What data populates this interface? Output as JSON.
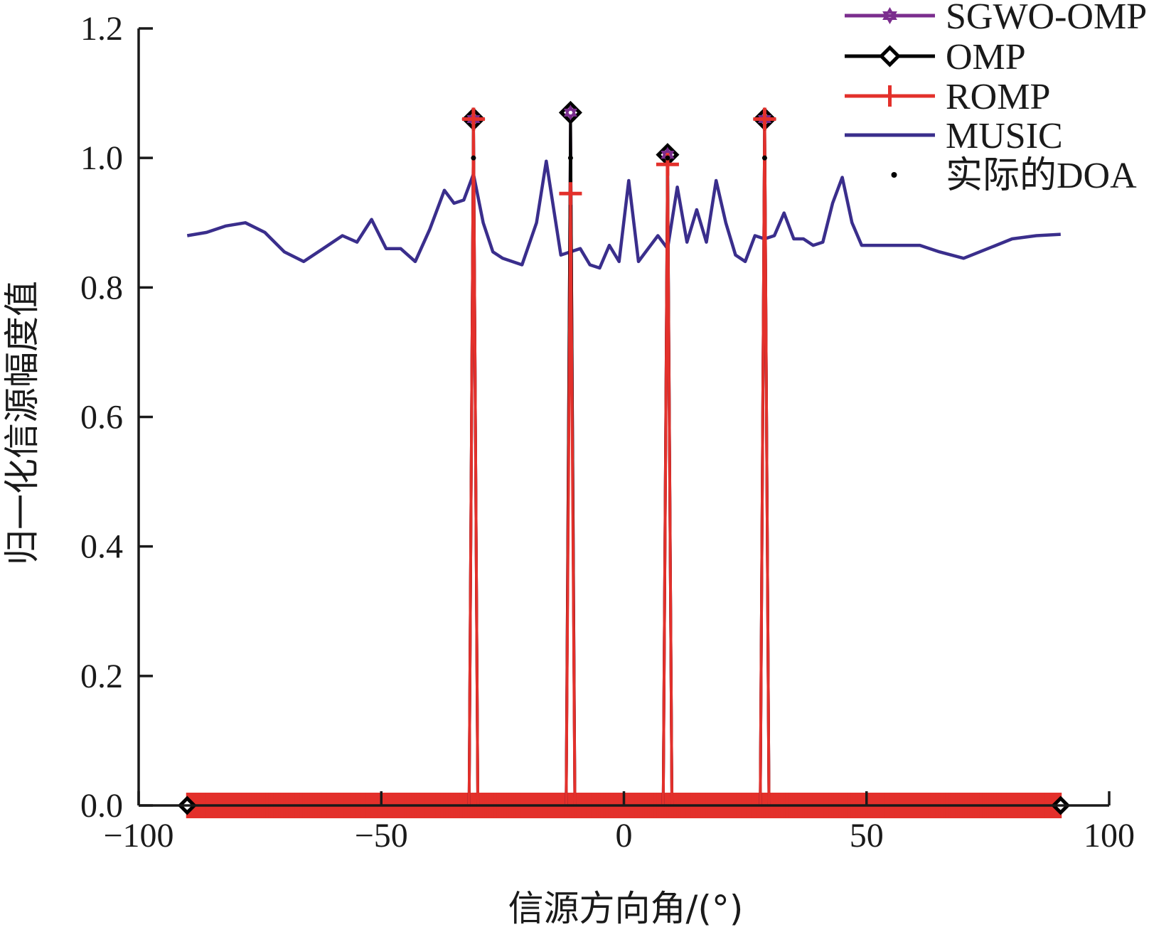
{
  "chart_data": {
    "type": "line",
    "title": "",
    "xlabel": "信源方向角/(°)",
    "ylabel": "归一化信源幅度值",
    "xlim": [
      -100,
      100
    ],
    "ylim": [
      0,
      1.2
    ],
    "x_ticks": [
      {
        "value": -100,
        "label": "−100"
      },
      {
        "value": -50,
        "label": "−50"
      },
      {
        "value": 0,
        "label": "0"
      },
      {
        "value": 50,
        "label": "50"
      },
      {
        "value": 100,
        "label": "100"
      }
    ],
    "y_ticks": [
      {
        "value": 0,
        "label": "0.0"
      },
      {
        "value": 0.2,
        "label": "0.2"
      },
      {
        "value": 0.4,
        "label": "0.4"
      },
      {
        "value": 0.6,
        "label": "0.6"
      },
      {
        "value": 0.8,
        "label": "0.8"
      },
      {
        "value": 1.0,
        "label": "1.0"
      },
      {
        "value": 1.2,
        "label": "1.2"
      }
    ],
    "grid": false,
    "legend_position": "top-right",
    "x_range": [
      -90,
      90
    ],
    "series": [
      {
        "name": "SGWO-OMP",
        "color": "#7b2d8e",
        "marker": "hexagram",
        "baseline": 0,
        "peaks": [
          {
            "x": -31,
            "y": 1.06
          },
          {
            "x": -11,
            "y": 1.07
          },
          {
            "x": 9,
            "y": 1.005
          },
          {
            "x": 29,
            "y": 1.06
          }
        ]
      },
      {
        "name": "OMP",
        "color": "#000000",
        "marker": "diamond",
        "baseline": 0,
        "peaks": [
          {
            "x": -31,
            "y": 1.06
          },
          {
            "x": -11,
            "y": 1.07
          },
          {
            "x": 9,
            "y": 1.005
          },
          {
            "x": 29,
            "y": 1.06
          }
        ]
      },
      {
        "name": "ROMP",
        "color": "#e3302b",
        "marker": "plus",
        "baseline": 0,
        "peaks": [
          {
            "x": -31,
            "y": 1.06
          },
          {
            "x": -11,
            "y": 0.945
          },
          {
            "x": 9,
            "y": 0.99
          },
          {
            "x": 29,
            "y": 1.06
          }
        ]
      },
      {
        "name": "MUSIC",
        "color": "#3a2e8c",
        "marker": "none",
        "x": [
          -90,
          -86,
          -82,
          -78,
          -74,
          -70,
          -66,
          -62,
          -58,
          -55,
          -52,
          -49,
          -46,
          -43,
          -40,
          -37,
          -35,
          -33,
          -31,
          -29,
          -27,
          -25,
          -23,
          -21,
          -18,
          -16,
          -13,
          -11,
          -9,
          -7,
          -5,
          -3,
          -1,
          1,
          3,
          5,
          7,
          9,
          11,
          13,
          15,
          17,
          19,
          21,
          23,
          25,
          27,
          29,
          31,
          33,
          35,
          37,
          39,
          41,
          43,
          45,
          47,
          49,
          51,
          53,
          55,
          57,
          59,
          61,
          65,
          70,
          75,
          80,
          85,
          90
        ],
        "y": [
          0.88,
          0.885,
          0.895,
          0.9,
          0.885,
          0.855,
          0.84,
          0.86,
          0.88,
          0.87,
          0.905,
          0.86,
          0.86,
          0.84,
          0.89,
          0.95,
          0.93,
          0.935,
          0.975,
          0.9,
          0.855,
          0.845,
          0.84,
          0.835,
          0.9,
          0.995,
          0.85,
          0.855,
          0.86,
          0.835,
          0.83,
          0.865,
          0.84,
          0.965,
          0.84,
          0.86,
          0.88,
          0.86,
          0.955,
          0.87,
          0.92,
          0.87,
          0.965,
          0.9,
          0.85,
          0.84,
          0.88,
          0.875,
          0.88,
          0.915,
          0.875,
          0.875,
          0.865,
          0.87,
          0.93,
          0.97,
          0.9,
          0.865,
          0.865,
          0.865,
          0.865,
          0.865,
          0.865,
          0.865,
          0.855,
          0.845,
          0.86,
          0.875,
          0.88,
          0.882
        ]
      },
      {
        "name": "实际的DOA",
        "color": "#000000",
        "marker": "point",
        "x": [
          -31,
          -11,
          9,
          29
        ],
        "y": [
          1.0,
          1.0,
          1.0,
          1.0
        ]
      }
    ]
  }
}
